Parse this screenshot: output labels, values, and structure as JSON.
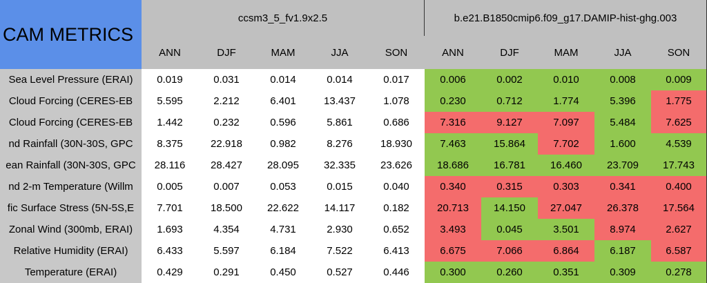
{
  "table": {
    "title": "CAM METRICS",
    "groups": [
      "ccsm3_5_fv1.9x2.5",
      "b.e21.B1850cmip6.f09_g17.DAMIP-hist-ghg.003"
    ],
    "seasons": [
      "ANN",
      "DJF",
      "MAM",
      "JJA",
      "SON",
      "ANN",
      "DJF",
      "MAM",
      "JJA",
      "SON"
    ],
    "colors": {
      "g": "#92c850",
      "r": "#f46c6c"
    },
    "rows": [
      {
        "label": "Sea Level Pressure (ERAI)",
        "values": [
          "0.019",
          "0.031",
          "0.014",
          "0.014",
          "0.017",
          "0.006",
          "0.002",
          "0.010",
          "0.008",
          "0.009"
        ],
        "shade": "ggggg"
      },
      {
        "label": "Cloud Forcing (CERES-EB",
        "values": [
          "5.595",
          "2.212",
          "6.401",
          "13.437",
          "1.078",
          "0.230",
          "0.712",
          "1.774",
          "5.396",
          "1.775"
        ],
        "shade": "ggggr"
      },
      {
        "label": "Cloud Forcing (CERES-EB",
        "values": [
          "1.442",
          "0.232",
          "0.596",
          "5.861",
          "0.686",
          "7.316",
          "9.127",
          "7.097",
          "5.484",
          "7.625"
        ],
        "shade": "rrrgr"
      },
      {
        "label": "nd Rainfall (30N-30S, GPC",
        "values": [
          "8.375",
          "22.918",
          "0.982",
          "8.276",
          "18.930",
          "7.463",
          "15.864",
          "7.702",
          "1.600",
          "4.539"
        ],
        "shade": "ggrgg"
      },
      {
        "label": "ean Rainfall (30N-30S, GPC",
        "values": [
          "28.116",
          "28.427",
          "28.095",
          "32.335",
          "23.626",
          "18.686",
          "16.781",
          "16.460",
          "23.709",
          "17.743"
        ],
        "shade": "ggggg"
      },
      {
        "label": "nd 2-m Temperature (Willm",
        "values": [
          "0.005",
          "0.007",
          "0.053",
          "0.015",
          "0.040",
          "0.340",
          "0.315",
          "0.303",
          "0.341",
          "0.400"
        ],
        "shade": "rrrrr"
      },
      {
        "label": "fic Surface Stress (5N-5S,E",
        "values": [
          "7.701",
          "18.500",
          "22.622",
          "14.117",
          "0.182",
          "20.713",
          "14.150",
          "27.047",
          "26.378",
          "17.564"
        ],
        "shade": "rgrrr"
      },
      {
        "label": "Zonal Wind (300mb, ERAI)",
        "values": [
          "1.693",
          "4.354",
          "4.731",
          "2.930",
          "0.652",
          "3.493",
          "0.045",
          "3.501",
          "8.974",
          "2.627"
        ],
        "shade": "rggrr"
      },
      {
        "label": "Relative Humidity (ERAI)",
        "values": [
          "6.433",
          "5.597",
          "6.184",
          "7.522",
          "6.413",
          "6.675",
          "7.066",
          "6.864",
          "6.187",
          "6.587"
        ],
        "shade": "rrrgr"
      },
      {
        "label": "Temperature (ERAI)",
        "values": [
          "0.429",
          "0.291",
          "0.450",
          "0.527",
          "0.446",
          "0.300",
          "0.260",
          "0.351",
          "0.309",
          "0.278"
        ],
        "shade": "ggggg"
      }
    ]
  }
}
